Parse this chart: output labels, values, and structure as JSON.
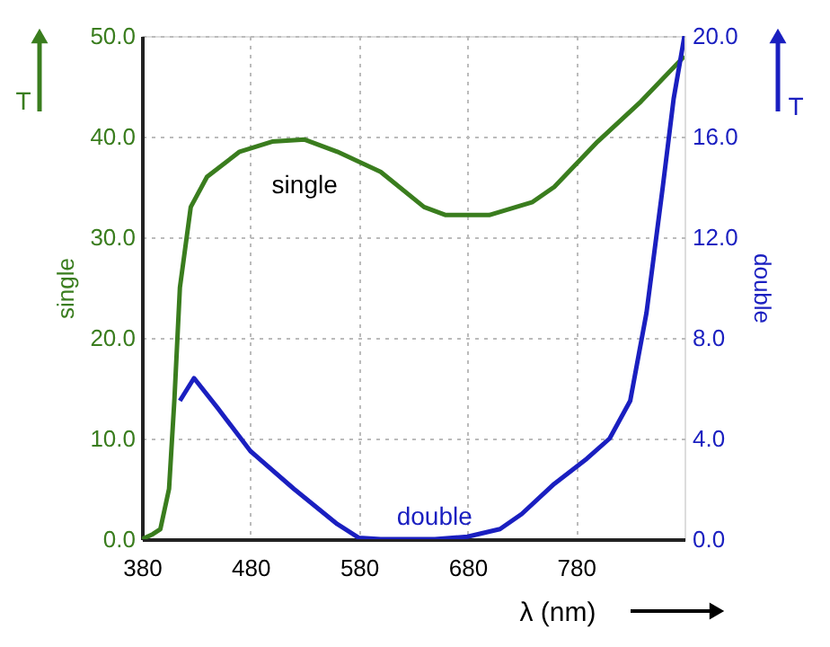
{
  "chart_data": {
    "type": "line",
    "xlabel": "λ (nm)",
    "ylabel": "single",
    "y2label": "double",
    "xlim": [
      380,
      880
    ],
    "xticks": [
      380,
      480,
      580,
      680,
      780
    ],
    "ylim": [
      0,
      50
    ],
    "yticks": [
      {
        "value": 0,
        "label": "0.0"
      },
      {
        "value": 10,
        "label": "10.0"
      },
      {
        "value": 20,
        "label": "20.0"
      },
      {
        "value": 30,
        "label": "30.0"
      },
      {
        "value": 40,
        "label": "40.0"
      },
      {
        "value": 50,
        "label": "50.0"
      }
    ],
    "y2lim": [
      0,
      20
    ],
    "y2ticks": [
      {
        "value": 0,
        "label": "0.0"
      },
      {
        "value": 4,
        "label": "4.0"
      },
      {
        "value": 8,
        "label": "8.0"
      },
      {
        "value": 12,
        "label": "12.0"
      },
      {
        "value": 16,
        "label": "16.0"
      },
      {
        "value": 20,
        "label": "20.0"
      }
    ],
    "grid": true,
    "marker": "none",
    "line_style": "solid",
    "series": [
      {
        "name": "single",
        "color": "#3a7d1e",
        "x": [
          380,
          390,
          397,
          405,
          410,
          415,
          425,
          440,
          470,
          500,
          530,
          560,
          600,
          640,
          660,
          700,
          740,
          760,
          800,
          840,
          880
        ],
        "values": [
          0,
          0.5,
          1,
          5,
          14,
          25,
          33,
          36,
          38.5,
          39.5,
          39.7,
          38.5,
          36.5,
          33,
          32.2,
          32.2,
          33.5,
          35,
          39.5,
          43.5,
          48
        ]
      },
      {
        "name": "double",
        "color": "#1a1fc0",
        "axis": "y2",
        "x": [
          415,
          428,
          450,
          480,
          520,
          560,
          580,
          600,
          650,
          680,
          710,
          730,
          760,
          790,
          811,
          830,
          845,
          860,
          870,
          880
        ],
        "values": [
          5.5,
          6.4,
          5.2,
          3.5,
          2.0,
          0.6,
          0.05,
          0,
          0,
          0.1,
          0.4,
          1.0,
          2.2,
          3.2,
          4.0,
          5.5,
          9,
          14,
          17.5,
          20
        ]
      }
    ],
    "annotations": [
      "T",
      "T"
    ]
  }
}
